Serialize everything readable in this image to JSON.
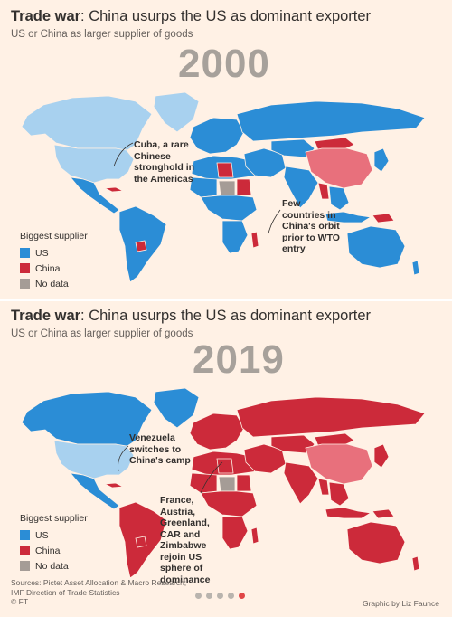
{
  "colors": {
    "us": "#2b8dd6",
    "us_light": "#a8d1ef",
    "china": "#cc2a3a",
    "china_light": "#e8707c",
    "no_data": "#a59c96",
    "background": "#fff1e5"
  },
  "maps": [
    {
      "title_bold": "Trade war",
      "title_rest": ": China usurps the US as dominant exporter",
      "subtitle": "US or China as larger supplier of goods",
      "year": "2000",
      "annotations": [
        "Cuba, a rare Chinese stronghold in the Americas",
        "Few countries in China's orbit prior to WTO entry"
      ],
      "legend": {
        "title": "Biggest supplier",
        "items": [
          {
            "label": "US",
            "color": "#2b8dd6"
          },
          {
            "label": "China",
            "color": "#cc2a3a"
          },
          {
            "label": "No data",
            "color": "#a59c96"
          }
        ]
      },
      "regions": {
        "north_america": "us_light",
        "usa": "us_light",
        "mexico_central_america": "us",
        "cuba": "china",
        "south_america": "us",
        "paraguay": "china",
        "greenland": "us_light",
        "europe": "us",
        "russia": "us",
        "north_africa": "us",
        "sahel": "us",
        "libya": "china",
        "sudan": "china",
        "chad": "no_data",
        "central_africa": "us",
        "southern_africa": "us",
        "madagascar": "china",
        "middle_east": "us",
        "central_asia": "us",
        "china": "china_light",
        "mongolia": "china",
        "india": "us",
        "southeast_asia": "us",
        "myanmar": "china",
        "japan_korea": "us",
        "indonesia": "us",
        "papua": "china",
        "australia": "us",
        "new_zealand": "us"
      }
    },
    {
      "title_bold": "Trade war",
      "title_rest": ": China usurps the US as dominant exporter",
      "subtitle": "US or China as larger supplier of goods",
      "year": "2019",
      "annotations": [
        "Venezuela switches to China's camp",
        "France, Austria, Greenland, CAR and Zimbabwe rejoin US sphere of dominance"
      ],
      "legend": {
        "title": "Biggest supplier",
        "items": [
          {
            "label": "US",
            "color": "#2b8dd6"
          },
          {
            "label": "China",
            "color": "#cc2a3a"
          },
          {
            "label": "No data",
            "color": "#a59c96"
          }
        ]
      },
      "regions": {
        "north_america": "us",
        "usa": "us_light",
        "mexico_central_america": "us",
        "cuba": "china",
        "south_america": "china",
        "paraguay": "china",
        "greenland": "us",
        "europe": "china",
        "russia": "china",
        "north_africa": "china",
        "sahel": "china",
        "libya": "china",
        "sudan": "china",
        "chad": "no_data",
        "central_africa": "china",
        "southern_africa": "china",
        "madagascar": "china",
        "middle_east": "china",
        "central_asia": "china",
        "china": "china_light",
        "mongolia": "china",
        "india": "china",
        "southeast_asia": "china",
        "myanmar": "china",
        "japan_korea": "china",
        "indonesia": "china",
        "papua": "china",
        "australia": "china",
        "new_zealand": "china"
      }
    }
  ],
  "footer": {
    "sources_line1": "Sources: Pictet Asset Allocation & Macro Research;",
    "sources_line2": "IMF Direction of Trade Statistics",
    "copyright": "© FT",
    "credit": "Graphic by Liz Faunce",
    "carousel": {
      "count": 5,
      "active": 5
    }
  }
}
